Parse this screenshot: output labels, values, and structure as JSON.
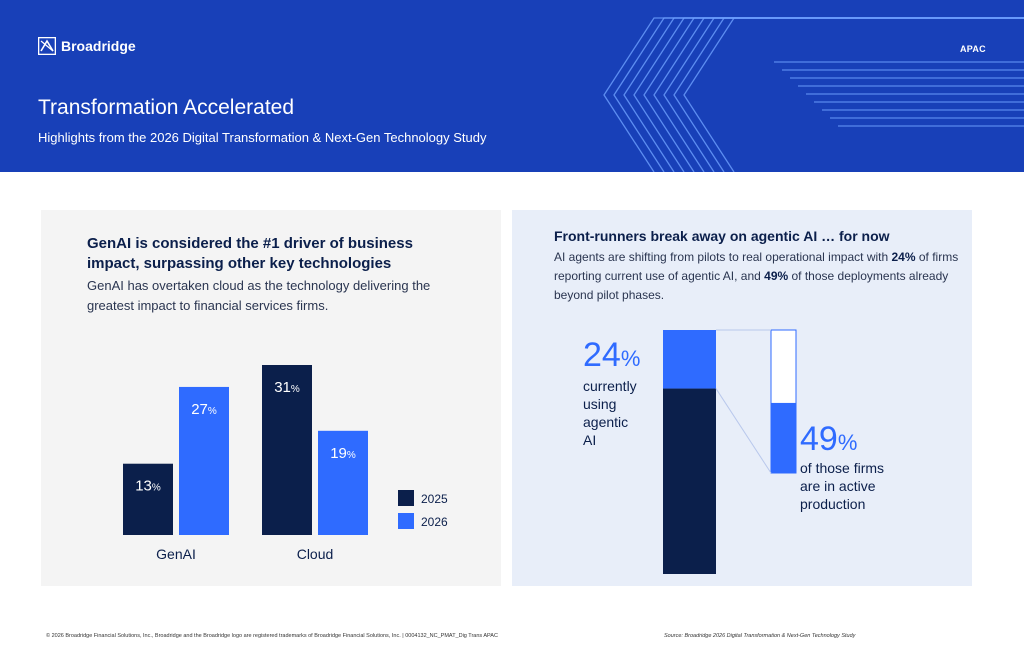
{
  "header": {
    "brand": "Broadridge",
    "region": "APAC",
    "title": "Transformation Accelerated",
    "subtitle": "Highlights from the 2026 Digital Transformation & Next-Gen Technology Study"
  },
  "left_panel": {
    "heading": "GenAI is considered the #1 driver of business impact, surpassing other key technologies",
    "body": "GenAI has overtaken cloud as the technology delivering the greatest impact to financial services firms."
  },
  "right_panel": {
    "heading": "Front-runners break away on agentic AI … for now",
    "body_1": "AI agents are shifting from pilots to real operational impact with ",
    "body_bold_1": "24%",
    "body_2": " of firms reporting current use of agentic AI, and ",
    "body_bold_2": "49%",
    "body_3": " of those deployments already beyond pilot phases."
  },
  "colors": {
    "navy": "#0b1f4b",
    "blue": "#2f6bff",
    "header_blue": "#1840b8",
    "text": "#2a3550"
  },
  "chart_data": [
    {
      "type": "bar",
      "categories": [
        "GenAI",
        "Cloud"
      ],
      "series": [
        {
          "name": "2025",
          "values": [
            13,
            31
          ],
          "color": "#0b1f4b"
        },
        {
          "name": "2026",
          "values": [
            27,
            19
          ],
          "color": "#2f6bff"
        }
      ],
      "value_suffix": "%",
      "ylim": [
        0,
        31
      ],
      "grid": false,
      "legend_position": "right"
    },
    {
      "type": "bar",
      "categories": [
        "currently using agentic AI",
        "of those firms are in active production"
      ],
      "values": [
        24,
        49
      ],
      "value_suffix": "%",
      "bar_labels": [
        "currently using agentic AI",
        "of those firms are in active production"
      ],
      "ylim": [
        0,
        100
      ]
    }
  ],
  "footer": {
    "copyright": "© 2026 Broadridge Financial Solutions, Inc., Broadridge and the Broadridge logo are registered trademarks of Broadridge Financial Solutions, Inc.   |   0004132_NC_PMAT_Dig Trans APAC",
    "source": "Source: Broadridge 2026 Digital Transformation & Next-Gen Technology Study"
  }
}
